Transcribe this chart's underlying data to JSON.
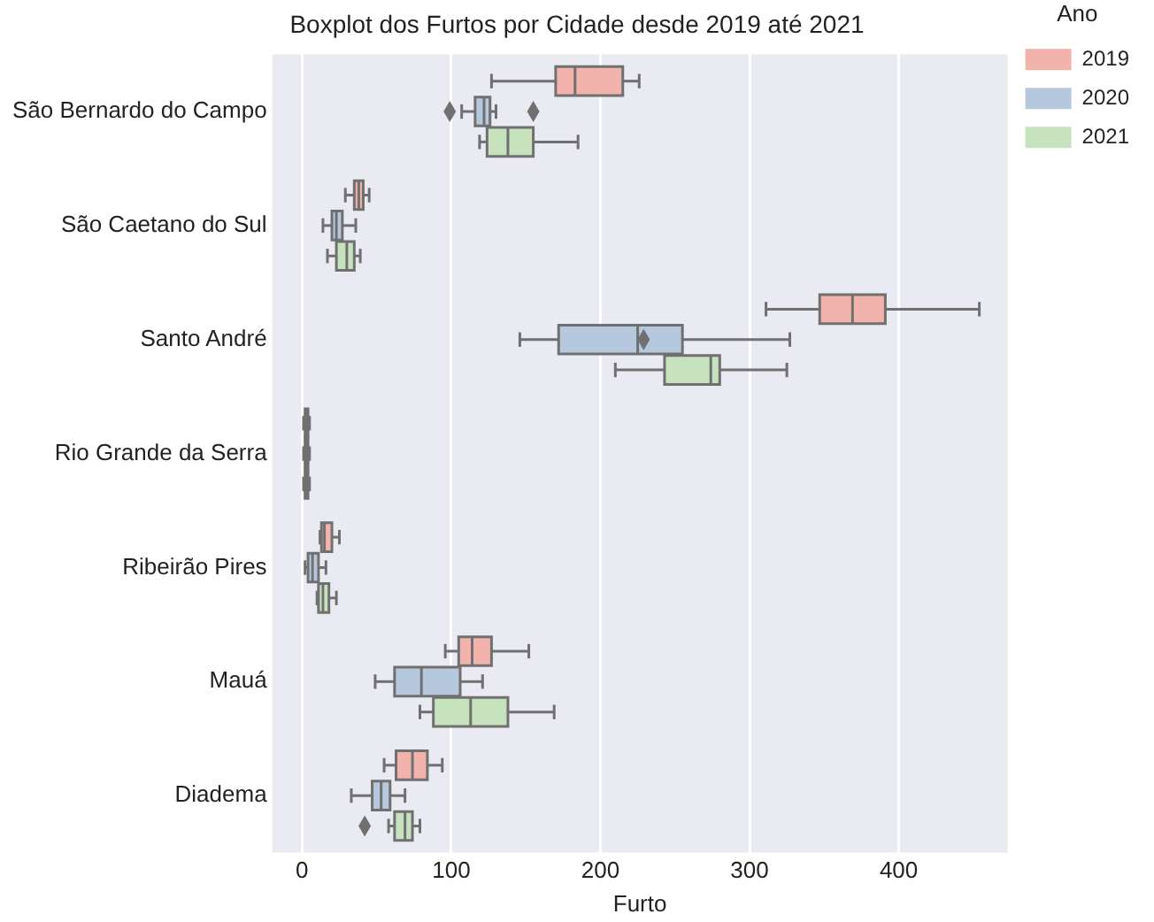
{
  "chart_data": {
    "type": "box",
    "title": "Boxplot dos Furtos por Cidade desde 2019 até 2021",
    "xlabel": "Furto",
    "legend_title": "Ano",
    "orientation": "horizontal",
    "legend": "top right",
    "grid": "x",
    "categories": [
      "São Bernardo do Campo",
      "São Caetano do Sul",
      "Santo André",
      "Rio Grande da Serra",
      "Ribeirão Pires",
      "Mauá",
      "Diadema"
    ],
    "xlim": [
      -20,
      473
    ],
    "xticks": [
      0,
      100,
      200,
      300,
      400
    ],
    "series": [
      {
        "name": "2019",
        "color": "#f3b3ad",
        "boxes": [
          {
            "low": 127,
            "q1": 170,
            "median": 183,
            "q3": 215,
            "high": 226
          },
          {
            "low": 29,
            "q1": 35,
            "median": 38,
            "q3": 41,
            "high": 45
          },
          {
            "low": 311,
            "q1": 347,
            "median": 369,
            "q3": 391,
            "high": 454
          },
          {
            "low": 1,
            "q1": 2,
            "median": 3,
            "q3": 4,
            "high": 5
          },
          {
            "low": 12,
            "q1": 13,
            "median": 15,
            "q3": 20,
            "high": 25
          },
          {
            "low": 96,
            "q1": 105,
            "median": 114,
            "q3": 127,
            "high": 152
          },
          {
            "low": 55,
            "q1": 63,
            "median": 74,
            "q3": 84,
            "high": 94
          }
        ]
      },
      {
        "name": "2020",
        "color": "#b5c8de",
        "boxes": [
          {
            "low": 107,
            "q1": 116,
            "median": 122,
            "q3": 126,
            "high": 130,
            "outliers": [
              99,
              155
            ]
          },
          {
            "low": 14,
            "q1": 20,
            "median": 23,
            "q3": 27,
            "high": 36
          },
          {
            "low": 146,
            "q1": 172,
            "median": 225,
            "q3": 255,
            "high": 327,
            "outliers": [
              229
            ]
          },
          {
            "low": 1,
            "q1": 2,
            "median": 3,
            "q3": 4,
            "high": 5
          },
          {
            "low": 2,
            "q1": 4,
            "median": 7,
            "q3": 11,
            "high": 16
          },
          {
            "low": 49,
            "q1": 62,
            "median": 80,
            "q3": 106,
            "high": 121
          },
          {
            "low": 33,
            "q1": 47,
            "median": 53,
            "q3": 59,
            "high": 69
          }
        ]
      },
      {
        "name": "2021",
        "color": "#c6e3be",
        "boxes": [
          {
            "low": 119,
            "q1": 124,
            "median": 138,
            "q3": 155,
            "high": 185
          },
          {
            "low": 17,
            "q1": 23,
            "median": 30,
            "q3": 35,
            "high": 39
          },
          {
            "low": 210,
            "q1": 243,
            "median": 274,
            "q3": 280,
            "high": 325
          },
          {
            "low": 1,
            "q1": 2,
            "median": 3,
            "q3": 4,
            "high": 5
          },
          {
            "low": 10,
            "q1": 11,
            "median": 14,
            "q3": 18,
            "high": 23
          },
          {
            "low": 79,
            "q1": 88,
            "median": 113,
            "q3": 138,
            "high": 169
          },
          {
            "low": 58,
            "q1": 62,
            "median": 69,
            "q3": 74,
            "high": 79,
            "outliers": [
              42
            ]
          }
        ]
      }
    ]
  }
}
